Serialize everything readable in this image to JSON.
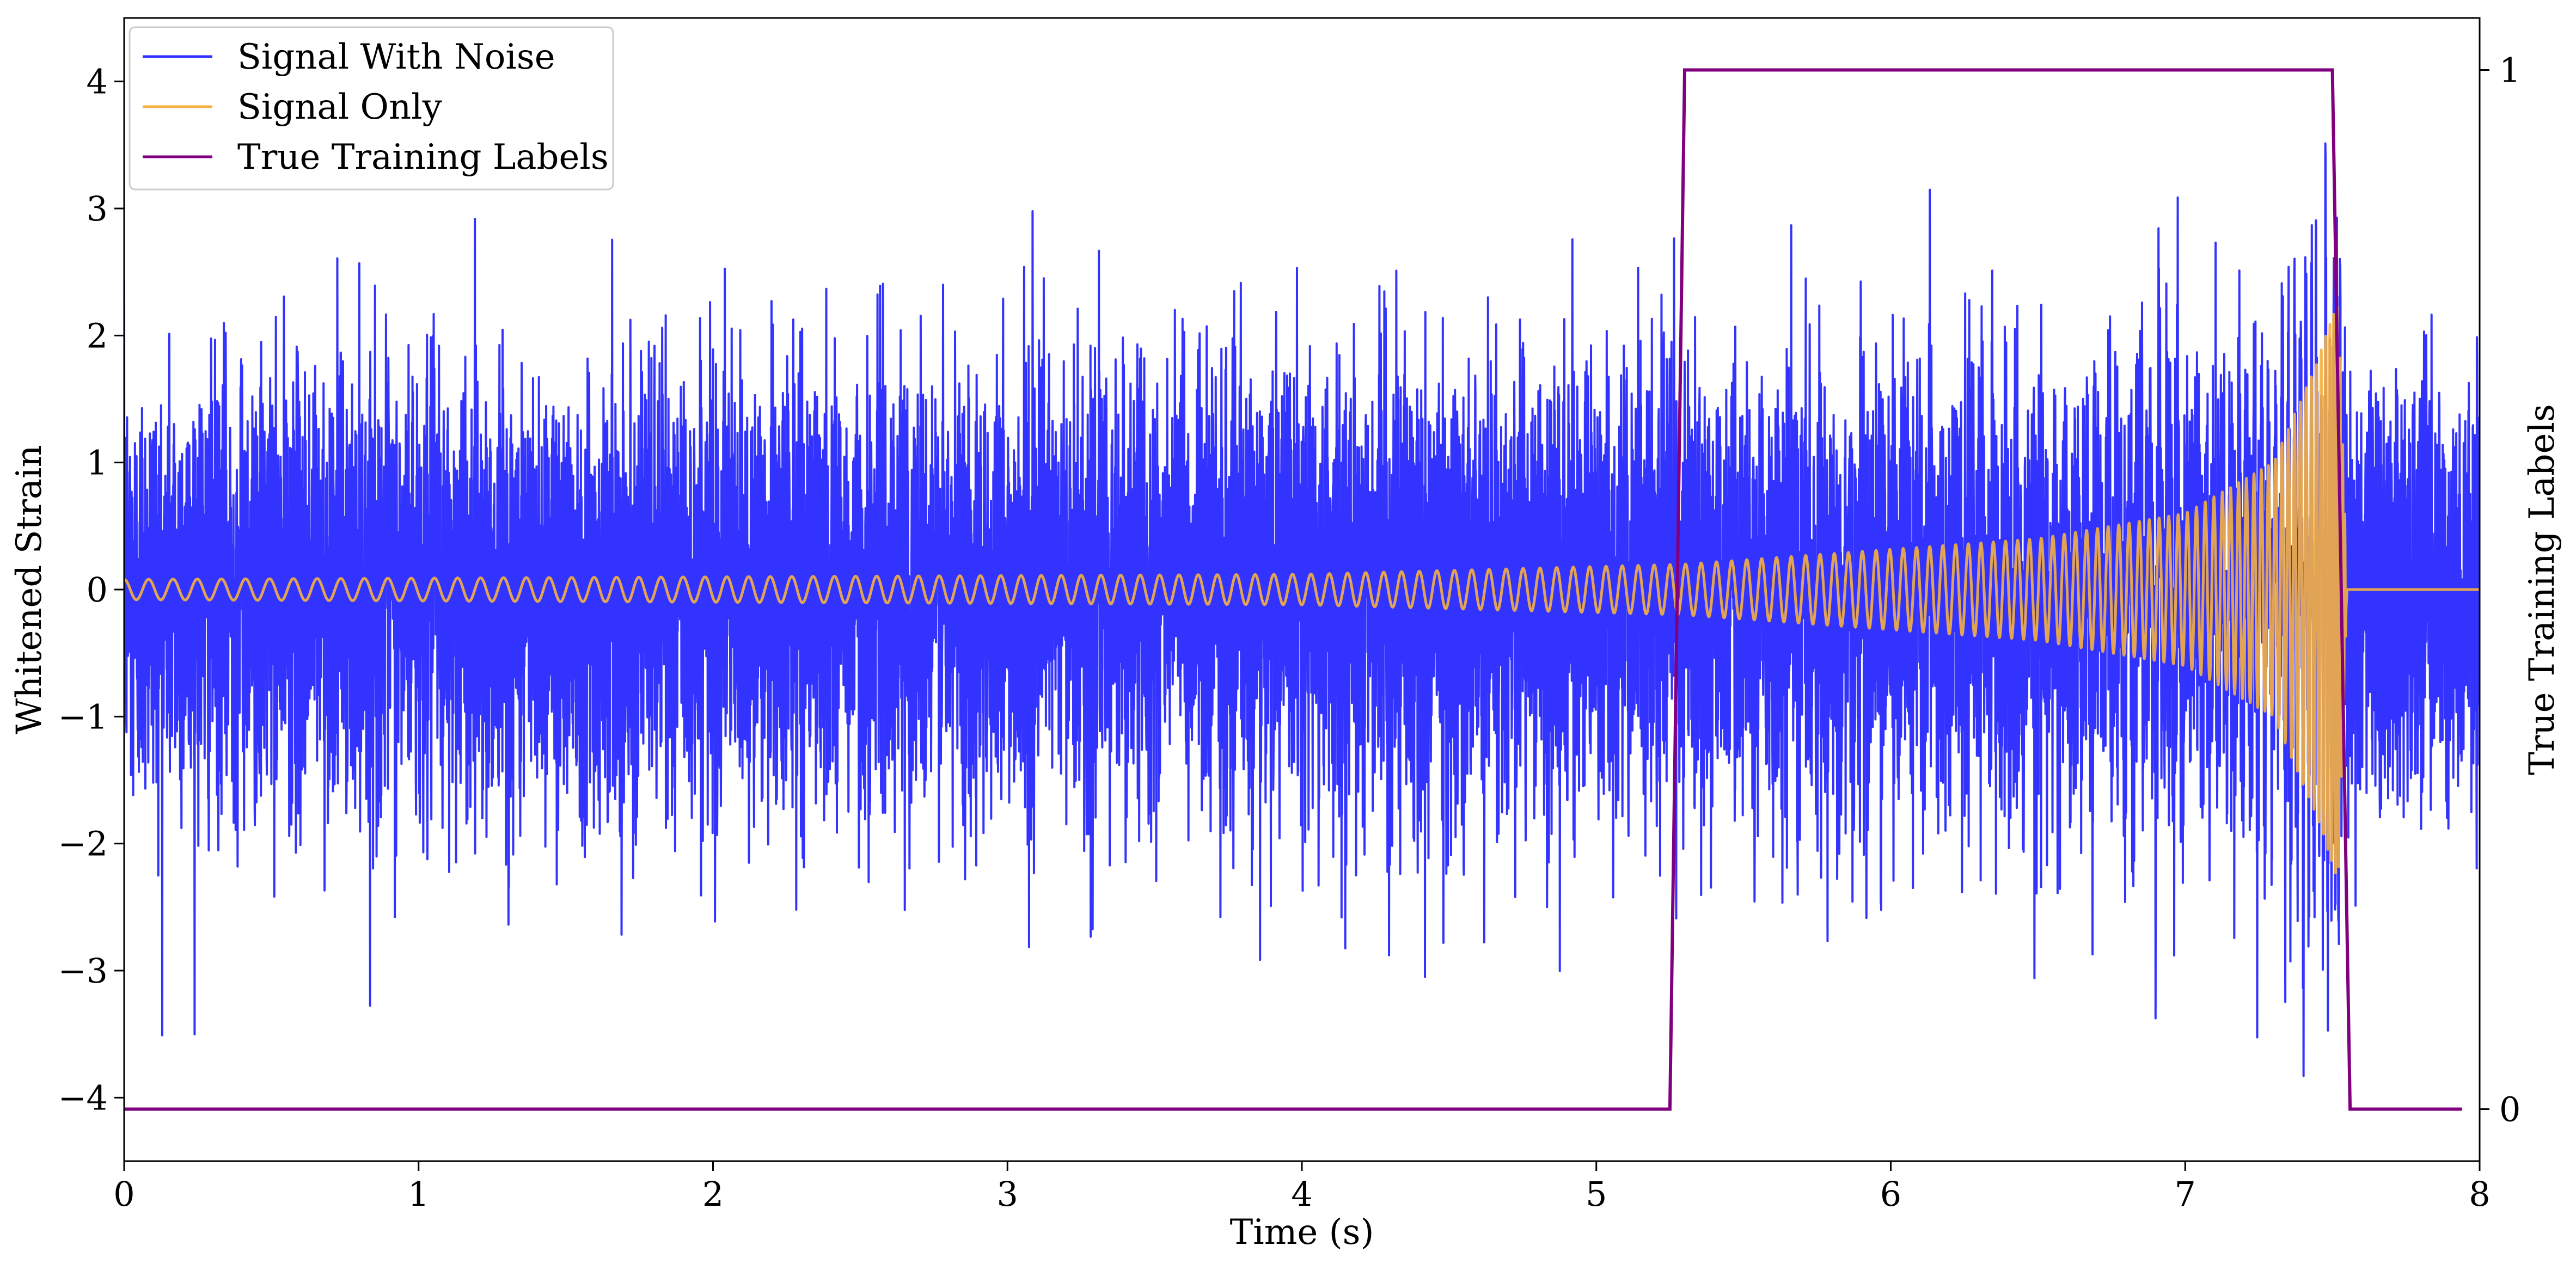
{
  "chart_data": {
    "type": "line",
    "title": "",
    "xlabel": "Time (s)",
    "ylabel": "Whitened Strain",
    "y2label": "True Training Labels",
    "xlim": [
      0,
      8
    ],
    "ylim": [
      -4.5,
      4.5
    ],
    "y2lim": [
      -0.05,
      1.05
    ],
    "x_ticks": [
      0,
      1,
      2,
      3,
      4,
      5,
      6,
      7,
      8
    ],
    "x_tick_labels": [
      "0",
      "1",
      "2",
      "3",
      "4",
      "5",
      "6",
      "7",
      "8"
    ],
    "y_ticks": [
      -4,
      -3,
      -2,
      -1,
      0,
      1,
      2,
      3,
      4
    ],
    "y_tick_labels": [
      "−4",
      "−3",
      "−2",
      "−1",
      "0",
      "1",
      "2",
      "3",
      "4"
    ],
    "y2_ticks": [
      0,
      1
    ],
    "y2_tick_labels": [
      "0",
      "1"
    ],
    "grid": false,
    "legend_position": "top-left",
    "series": [
      {
        "name": "Signal With Noise",
        "color": "#3333ff",
        "axis": "left",
        "noise_sigma": 0.85,
        "noise_peak_range": [
          -3.8,
          3.95
        ],
        "x_range": [
          0,
          8
        ]
      },
      {
        "name": "Signal Only",
        "color": "#f4b042",
        "axis": "left",
        "x_range": [
          0,
          8
        ],
        "chirp_start_freq_hz": 12,
        "chirp_merger_time_s": 7.55,
        "chirp_amplitude": [
          {
            "x": 0,
            "y": 0.08
          },
          {
            "x": 4,
            "y": 0.12
          },
          {
            "x": 5.3,
            "y": 0.2
          },
          {
            "x": 6.5,
            "y": 0.4
          },
          {
            "x": 7.0,
            "y": 0.6
          },
          {
            "x": 7.3,
            "y": 1.0
          },
          {
            "x": 7.45,
            "y": 1.8
          },
          {
            "x": 7.52,
            "y": 2.3
          },
          {
            "x": 7.55,
            "y": 0.0
          },
          {
            "x": 8,
            "y": 0.0
          }
        ]
      },
      {
        "name": "True Training Labels",
        "color": "#800080",
        "axis": "right",
        "points": [
          {
            "x": 0,
            "y": 0
          },
          {
            "x": 5.25,
            "y": 0
          },
          {
            "x": 5.3,
            "y": 1
          },
          {
            "x": 7.5,
            "y": 1
          },
          {
            "x": 7.56,
            "y": 0
          },
          {
            "x": 7.94,
            "y": 0
          }
        ]
      }
    ]
  }
}
